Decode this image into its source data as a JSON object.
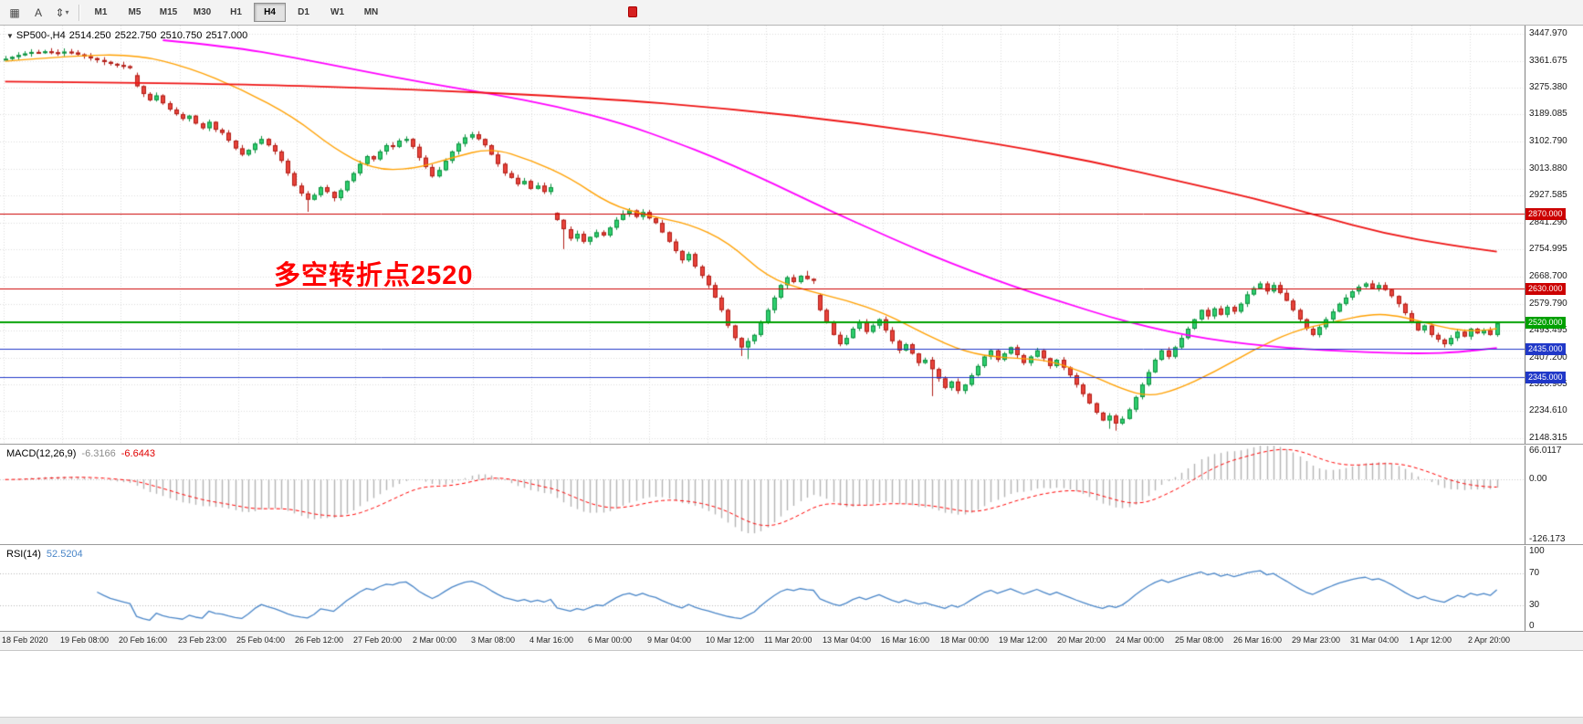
{
  "toolbar": {
    "icon_buttons": [
      {
        "name": "grid-icon",
        "glyph": "▦"
      },
      {
        "name": "cursor-a-icon",
        "glyph": "A"
      },
      {
        "name": "chart-shift-icon",
        "glyph": "⇕"
      }
    ],
    "timeframes": [
      "M1",
      "M5",
      "M15",
      "M30",
      "H1",
      "H4",
      "D1",
      "W1",
      "MN"
    ],
    "active_timeframe": "H4"
  },
  "chart": {
    "title": {
      "symbol_period": "SP500-,H4",
      "open": "2514.250",
      "high": "2522.750",
      "low": "2510.750",
      "close": "2517.000"
    },
    "annotation": {
      "text": "多空转折点2520",
      "color": "#ff0000"
    },
    "price_axis": [
      "3447.970",
      "3361.675",
      "3275.380",
      "3189.085",
      "3102.790",
      "3013.880",
      "2927.585",
      "2841.290",
      "2754.995",
      "2668.700",
      "2579.790",
      "2493.495",
      "2407.200",
      "2320.905",
      "2234.610",
      "2148.315"
    ],
    "time_axis": [
      "18 Feb 2020",
      "19 Feb 08:00",
      "20 Feb 16:00",
      "23 Feb 23:00",
      "25 Feb 04:00",
      "26 Feb 12:00",
      "27 Feb 20:00",
      "2 Mar 00:00",
      "3 Mar 08:00",
      "4 Mar 16:00",
      "6 Mar 00:00",
      "9 Mar 04:00",
      "10 Mar 12:00",
      "11 Mar 20:00",
      "13 Mar 04:00",
      "16 Mar 16:00",
      "18 Mar 00:00",
      "19 Mar 12:00",
      "20 Mar 20:00",
      "24 Mar 00:00",
      "25 Mar 08:00",
      "26 Mar 16:00",
      "29 Mar 23:00",
      "31 Mar 04:00",
      "1 Apr 12:00",
      "2 Apr 20:00"
    ]
  },
  "chart_data": {
    "type": "candlestick",
    "symbol": "SP500-",
    "timeframe": "H4",
    "axis_range": {
      "max": 3475,
      "min": 2130
    },
    "closes": [
      3368,
      3374,
      3380,
      3385,
      3390,
      3388,
      3392,
      3389,
      3386,
      3391,
      3388,
      3382,
      3376,
      3370,
      3364,
      3358,
      3352,
      3348,
      3344,
      3340,
      3280,
      3255,
      3235,
      3250,
      3225,
      3205,
      3190,
      3175,
      3185,
      3160,
      3145,
      3165,
      3140,
      3130,
      3105,
      3080,
      3060,
      3075,
      3095,
      3110,
      3090,
      3070,
      3040,
      3000,
      2960,
      2935,
      2915,
      2930,
      2955,
      2940,
      2920,
      2945,
      2975,
      3000,
      3030,
      3055,
      3045,
      3070,
      3090,
      3085,
      3105,
      3110,
      3085,
      3050,
      3020,
      2990,
      3010,
      3040,
      3070,
      3095,
      3115,
      3125,
      3110,
      3090,
      3060,
      3030,
      3000,
      2985,
      2965,
      2975,
      2950,
      2960,
      2940,
      2955,
      2850,
      2820,
      2790,
      2805,
      2780,
      2795,
      2810,
      2800,
      2825,
      2850,
      2870,
      2880,
      2860,
      2875,
      2855,
      2840,
      2810,
      2780,
      2750,
      2720,
      2740,
      2700,
      2670,
      2640,
      2600,
      2560,
      2510,
      2470,
      2440,
      2460,
      2480,
      2520,
      2560,
      2600,
      2640,
      2665,
      2650,
      2670,
      2660,
      2655,
      2560,
      2520,
      2480,
      2450,
      2470,
      2500,
      2520,
      2490,
      2510,
      2530,
      2495,
      2460,
      2430,
      2450,
      2420,
      2390,
      2400,
      2370,
      2340,
      2310,
      2330,
      2300,
      2320,
      2350,
      2380,
      2410,
      2430,
      2400,
      2420,
      2440,
      2415,
      2390,
      2410,
      2430,
      2405,
      2380,
      2400,
      2375,
      2350,
      2320,
      2290,
      2260,
      2230,
      2205,
      2220,
      2195,
      2210,
      2240,
      2280,
      2320,
      2360,
      2400,
      2430,
      2410,
      2440,
      2470,
      2500,
      2530,
      2560,
      2540,
      2565,
      2545,
      2570,
      2555,
      2580,
      2610,
      2630,
      2645,
      2620,
      2640,
      2615,
      2590,
      2560,
      2530,
      2500,
      2480,
      2505,
      2530,
      2555,
      2580,
      2600,
      2620,
      2635,
      2645,
      2630,
      2640,
      2625,
      2605,
      2580,
      2550,
      2520,
      2495,
      2510,
      2480,
      2465,
      2450,
      2470,
      2490,
      2475,
      2500,
      2485,
      2495,
      2480,
      2517
    ],
    "opens_override": {
      "20": 3315,
      "84": 2872,
      "124": 2608
    },
    "wick_lows": {
      "46": 2876,
      "85": 2756,
      "112": 2412,
      "113": 2402,
      "141": 2283,
      "168": 2178,
      "169": 2172
    },
    "wick_highs": {
      "6": 3397,
      "71": 3133,
      "122": 2686,
      "191": 2652,
      "207": 2650,
      "227": 2522
    },
    "candle_colors": {
      "up_fill": "#2fcf6f",
      "up_stroke": "#0d8f3e",
      "down_fill": "#e8433a",
      "down_stroke": "#b01e17"
    },
    "levels": [
      {
        "price": 2870.0,
        "label": "2870.000",
        "color": "#cc0000",
        "width": 1
      },
      {
        "price": 2630.0,
        "label": "2630.000",
        "color": "#cc0000",
        "width": 1
      },
      {
        "price": 2520.0,
        "label": "2520.000",
        "color": "#00a000",
        "width": 2
      },
      {
        "price": 2435.0,
        "label": "2435.000",
        "color": "#2038c8",
        "width": 1
      },
      {
        "price": 2345.0,
        "label": "2345.000",
        "color": "#2038c8",
        "width": 1
      }
    ],
    "ma_overlays": [
      {
        "name": "ma-fast",
        "color": "#ffa000",
        "width": 1.4,
        "anchors": [
          [
            0,
            3360
          ],
          [
            10,
            3378
          ],
          [
            20,
            3382
          ],
          [
            28,
            3340
          ],
          [
            36,
            3270
          ],
          [
            44,
            3180
          ],
          [
            50,
            3080
          ],
          [
            56,
            3012
          ],
          [
            62,
            3012
          ],
          [
            68,
            3050
          ],
          [
            74,
            3082
          ],
          [
            80,
            3042
          ],
          [
            86,
            2985
          ],
          [
            92,
            2900
          ],
          [
            98,
            2862
          ],
          [
            104,
            2838
          ],
          [
            110,
            2780
          ],
          [
            116,
            2665
          ],
          [
            122,
            2622
          ],
          [
            128,
            2592
          ],
          [
            134,
            2548
          ],
          [
            140,
            2482
          ],
          [
            146,
            2425
          ],
          [
            152,
            2405
          ],
          [
            158,
            2402
          ],
          [
            164,
            2362
          ],
          [
            170,
            2305
          ],
          [
            174,
            2282
          ],
          [
            178,
            2302
          ],
          [
            184,
            2360
          ],
          [
            190,
            2432
          ],
          [
            196,
            2492
          ],
          [
            202,
            2522
          ],
          [
            208,
            2548
          ],
          [
            212,
            2542
          ],
          [
            216,
            2520
          ],
          [
            220,
            2498
          ],
          [
            224,
            2492
          ],
          [
            227,
            2500
          ]
        ]
      },
      {
        "name": "ma-medium",
        "color": "#ff00ff",
        "width": 1.8,
        "anchors": [
          [
            24,
            3428
          ],
          [
            34,
            3408
          ],
          [
            44,
            3372
          ],
          [
            54,
            3330
          ],
          [
            64,
            3290
          ],
          [
            74,
            3255
          ],
          [
            84,
            3215
          ],
          [
            94,
            3160
          ],
          [
            102,
            3100
          ],
          [
            108,
            3050
          ],
          [
            114,
            2995
          ],
          [
            120,
            2935
          ],
          [
            126,
            2875
          ],
          [
            132,
            2818
          ],
          [
            138,
            2762
          ],
          [
            144,
            2710
          ],
          [
            150,
            2662
          ],
          [
            156,
            2618
          ],
          [
            162,
            2578
          ],
          [
            168,
            2538
          ],
          [
            174,
            2505
          ],
          [
            180,
            2478
          ],
          [
            186,
            2458
          ],
          [
            192,
            2444
          ],
          [
            198,
            2434
          ],
          [
            204,
            2427
          ],
          [
            210,
            2422
          ],
          [
            216,
            2420
          ],
          [
            221,
            2424
          ],
          [
            227,
            2438
          ]
        ]
      },
      {
        "name": "ma-slow",
        "color": "#ee1515",
        "width": 1.8,
        "anchors": [
          [
            0,
            3295
          ],
          [
            30,
            3290
          ],
          [
            60,
            3272
          ],
          [
            90,
            3242
          ],
          [
            110,
            3208
          ],
          [
            130,
            3162
          ],
          [
            150,
            3098
          ],
          [
            165,
            3040
          ],
          [
            180,
            2968
          ],
          [
            190,
            2920
          ],
          [
            200,
            2862
          ],
          [
            210,
            2805
          ],
          [
            220,
            2768
          ],
          [
            227,
            2748
          ]
        ]
      }
    ],
    "macd": {
      "label": "MACD(12,26,9)",
      "value_main": "-6.3166",
      "value_signal": "-6.6443",
      "params": [
        12,
        26,
        9
      ],
      "axis": [
        "66.0117",
        "0.00",
        "-126.173"
      ],
      "range": {
        "max": 70,
        "min": -135
      },
      "hist_color": "#b4b4b4",
      "signal_color": "#ff0000"
    },
    "rsi": {
      "label": "RSI(14)",
      "value": "52.5204",
      "period": 14,
      "axis": [
        "100",
        "70",
        "30",
        "0"
      ],
      "levels": [
        70,
        30
      ],
      "range": {
        "max": 105,
        "min": -3
      },
      "line_color": "#4a86c8"
    }
  }
}
